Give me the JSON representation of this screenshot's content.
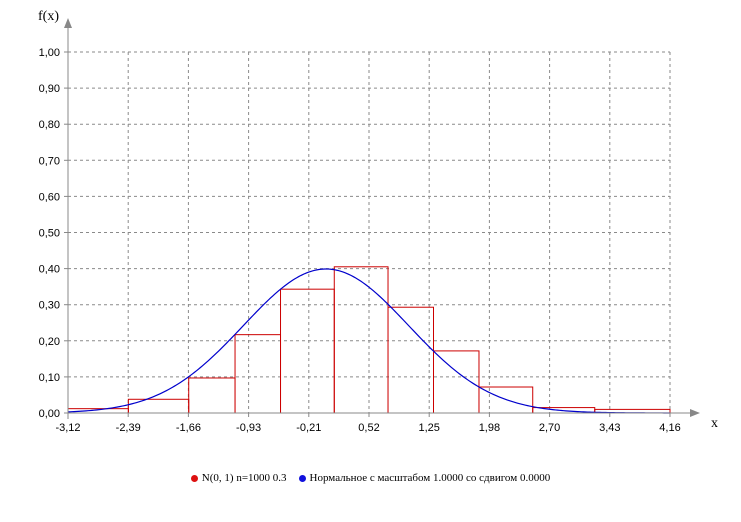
{
  "chart_data": {
    "type": "histogram",
    "ylabel": "f(x)",
    "xlabel": "x",
    "xlim": [
      -3.12,
      4.16
    ],
    "ylim": [
      0,
      1.0
    ],
    "x_ticks": [
      "-3,12",
      "-2,39",
      "-1,66",
      "-0,93",
      "-0,21",
      "0,52",
      "1,25",
      "1,98",
      "2,70",
      "3,43",
      "4,16"
    ],
    "y_ticks": [
      "0,00",
      "0,10",
      "0,20",
      "0,30",
      "0,40",
      "0,50",
      "0,60",
      "0,70",
      "0,80",
      "0,90",
      "1,00"
    ],
    "grid": true,
    "histogram": {
      "name": "N(0, 1) n=1000 0.3",
      "color": "#cc0000",
      "bins": [
        {
          "x0": -3.12,
          "x1": -2.39,
          "y": 0.012
        },
        {
          "x0": -2.39,
          "x1": -1.66,
          "y": 0.038
        },
        {
          "x0": -1.66,
          "x1": -1.1,
          "y": 0.097
        },
        {
          "x0": -1.1,
          "x1": -0.55,
          "y": 0.217
        },
        {
          "x0": -0.55,
          "x1": 0.1,
          "y": 0.343
        },
        {
          "x0": 0.1,
          "x1": 0.75,
          "y": 0.405
        },
        {
          "x0": 0.75,
          "x1": 1.3,
          "y": 0.293
        },
        {
          "x0": 1.3,
          "x1": 1.85,
          "y": 0.172
        },
        {
          "x0": 1.85,
          "x1": 2.5,
          "y": 0.072
        },
        {
          "x0": 2.5,
          "x1": 3.25,
          "y": 0.015
        },
        {
          "x0": 3.25,
          "x1": 4.16,
          "y": 0.01
        }
      ]
    },
    "curve": {
      "name": "Нормальное с масштабом 1.0000 со сдвигом 0.0000",
      "color": "#0000cc",
      "mean": 0.0,
      "sd": 1.0
    }
  }
}
